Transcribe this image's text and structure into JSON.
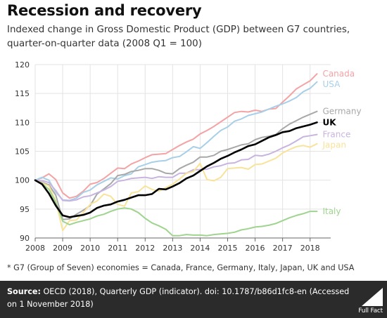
{
  "title": "Recession and recovery",
  "subtitle": "Indexed change in Gross Domestic Product (GDP) between G7 countries, quarter-on-quarter data (2008 Q1 = 100)",
  "footnote": "* G7 (Group of Seven) economies = Canada, France, Germany, Italy, Japan, UK and USA",
  "source": {
    "label": "Source:",
    "text": " OECD (2018), Quarterly GDP (indicator). doi: 10.1787/b86d1fc8-en (Accessed on 1 November 2018)"
  },
  "logo_text": "Full Fact",
  "chart_data": {
    "type": "line",
    "title": "Recession and recovery",
    "xlabel": "",
    "ylabel": "",
    "xlim": [
      2008,
      2018.75
    ],
    "ylim": [
      90,
      120
    ],
    "xticks": [
      2008,
      2009,
      2010,
      2011,
      2012,
      2013,
      2014,
      2015,
      2016,
      2017,
      2018
    ],
    "yticks": [
      90,
      95,
      100,
      105,
      110,
      115,
      120
    ],
    "grid": true,
    "legend": "direct labels at line ends",
    "x": [
      "2008 Q1",
      "2008 Q2",
      "2008 Q3",
      "2008 Q4",
      "2009 Q1",
      "2009 Q2",
      "2009 Q3",
      "2009 Q4",
      "2010 Q1",
      "2010 Q2",
      "2010 Q3",
      "2010 Q4",
      "2011 Q1",
      "2011 Q2",
      "2011 Q3",
      "2011 Q4",
      "2012 Q1",
      "2012 Q2",
      "2012 Q3",
      "2012 Q4",
      "2013 Q1",
      "2013 Q2",
      "2013 Q3",
      "2013 Q4",
      "2014 Q1",
      "2014 Q2",
      "2014 Q3",
      "2014 Q4",
      "2015 Q1",
      "2015 Q2",
      "2015 Q3",
      "2015 Q4",
      "2016 Q1",
      "2016 Q2",
      "2016 Q3",
      "2016 Q4",
      "2017 Q1",
      "2017 Q2",
      "2017 Q3",
      "2017 Q4",
      "2018 Q1",
      "2018 Q2"
    ],
    "series": [
      {
        "name": "Canada",
        "color": "#f4a3a5",
        "width": 2,
        "values": [
          100,
          100.4,
          101.1,
          100.1,
          97.8,
          96.9,
          97.2,
          98.1,
          99.3,
          99.6,
          100.3,
          101.2,
          102.1,
          102.0,
          102.8,
          103.3,
          103.9,
          104.4,
          104.5,
          104.6,
          105.3,
          106.0,
          106.6,
          107.1,
          108.0,
          108.6,
          109.3,
          110.1,
          110.9,
          111.7,
          111.9,
          111.8,
          112.1,
          111.9,
          112.3,
          112.4,
          113.5,
          114.6,
          115.8,
          116.5,
          117.2,
          118.4
        ]
      },
      {
        "name": "USA",
        "color": "#a8cfe8",
        "width": 2,
        "values": [
          100,
          100.5,
          100.0,
          97.9,
          96.6,
          96.5,
          96.9,
          97.9,
          98.3,
          99.2,
          99.8,
          100.4,
          100.2,
          100.8,
          101.1,
          102.3,
          102.7,
          103.1,
          103.3,
          103.4,
          103.9,
          104.1,
          104.9,
          105.8,
          105.5,
          106.5,
          107.6,
          108.6,
          109.2,
          110.2,
          110.6,
          111.2,
          111.5,
          111.8,
          112.3,
          112.8,
          113.2,
          113.7,
          114.3,
          115.3,
          115.9,
          117.0
        ]
      },
      {
        "name": "Germany",
        "color": "#a8a8a8",
        "width": 2,
        "values": [
          100,
          99.6,
          99.2,
          97.4,
          93.2,
          93.3,
          94.1,
          94.8,
          95.6,
          97.6,
          98.5,
          99.4,
          100.8,
          101.0,
          101.5,
          101.7,
          102.0,
          102.0,
          101.7,
          101.2,
          101.1,
          102.0,
          102.6,
          103.1,
          104.0,
          104.0,
          104.3,
          105.0,
          105.3,
          105.7,
          106.1,
          106.3,
          107.0,
          107.4,
          107.6,
          107.9,
          108.9,
          109.7,
          110.3,
          110.9,
          111.4,
          111.9
        ]
      },
      {
        "name": "UK",
        "color": "#000000",
        "width": 2.6,
        "values": [
          100,
          99.3,
          97.7,
          95.6,
          93.9,
          93.6,
          93.8,
          94.0,
          94.4,
          95.2,
          95.6,
          95.8,
          96.3,
          96.6,
          97.0,
          97.4,
          97.4,
          97.6,
          98.5,
          98.4,
          98.9,
          99.5,
          100.3,
          100.8,
          101.6,
          102.4,
          103.0,
          103.7,
          104.2,
          104.8,
          105.3,
          105.9,
          106.2,
          106.8,
          107.4,
          107.8,
          108.3,
          108.5,
          109.0,
          109.3,
          109.6,
          110.0
        ]
      },
      {
        "name": "France",
        "color": "#c8b4e0",
        "width": 2,
        "values": [
          100,
          99.9,
          99.6,
          98.2,
          96.5,
          96.4,
          96.6,
          97.1,
          97.3,
          97.8,
          98.3,
          98.9,
          99.8,
          100.0,
          100.3,
          100.4,
          100.5,
          100.3,
          100.6,
          100.5,
          100.5,
          101.2,
          101.2,
          101.8,
          101.8,
          101.9,
          102.3,
          102.5,
          102.9,
          103.0,
          103.5,
          103.6,
          104.3,
          104.2,
          104.5,
          105.0,
          105.6,
          106.1,
          106.8,
          107.5,
          107.7,
          107.9
        ]
      },
      {
        "name": "Japan",
        "color": "#f8e39a",
        "width": 2,
        "values": [
          100,
          99.5,
          99.0,
          96.4,
          91.3,
          93.0,
          93.1,
          94.4,
          95.8,
          96.4,
          97.6,
          97.2,
          95.8,
          95.5,
          97.8,
          98.0,
          99.0,
          98.4,
          98.1,
          98.7,
          99.3,
          100.2,
          101.2,
          101.5,
          102.9,
          100.1,
          99.9,
          100.5,
          102.0,
          102.1,
          102.2,
          101.9,
          102.7,
          102.8,
          103.3,
          103.8,
          104.7,
          105.3,
          105.8,
          106.0,
          105.7,
          106.3
        ]
      },
      {
        "name": "Italy",
        "color": "#9fd48e",
        "width": 2,
        "values": [
          100,
          99.4,
          98.4,
          96.2,
          92.9,
          92.3,
          92.7,
          93.0,
          93.3,
          93.8,
          94.1,
          94.6,
          95.0,
          95.2,
          95.0,
          94.4,
          93.4,
          92.6,
          92.1,
          91.5,
          90.4,
          90.4,
          90.6,
          90.5,
          90.5,
          90.4,
          90.6,
          90.7,
          90.8,
          91.0,
          91.4,
          91.6,
          91.9,
          92.0,
          92.2,
          92.5,
          93.0,
          93.5,
          93.9,
          94.2,
          94.6,
          94.6
        ]
      }
    ]
  }
}
